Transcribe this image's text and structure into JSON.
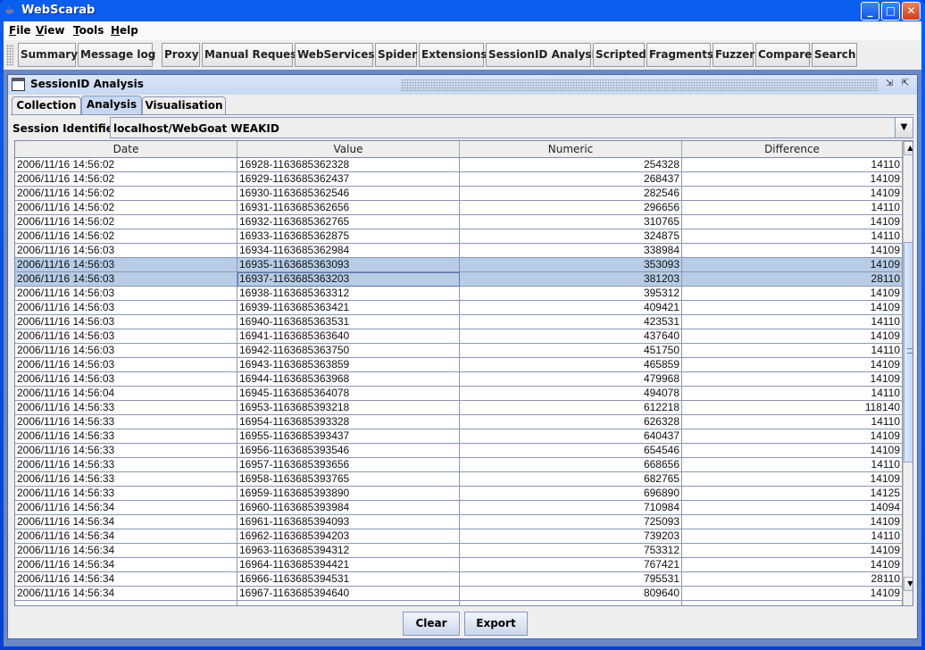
{
  "window": {
    "title": "WebScarab",
    "app_icon": "java-cup-icon"
  },
  "menubar": [
    {
      "label": "File",
      "mnemonic": "F",
      "rest": "ile"
    },
    {
      "label": "View",
      "mnemonic": "V",
      "rest": "iew"
    },
    {
      "label": "Tools",
      "mnemonic": "T",
      "rest": "ools"
    },
    {
      "label": "Help",
      "mnemonic": "H",
      "rest": "elp"
    }
  ],
  "toolbar": [
    "Summary",
    "Message log",
    "Proxy",
    "Manual Request",
    "WebServices",
    "Spider",
    "Extensions",
    "SessionID Analysis",
    "Scripted",
    "Fragments",
    "Fuzzer",
    "Compare",
    "Search"
  ],
  "internal_frame": {
    "title": "SessionID Analysis"
  },
  "tabs": [
    {
      "label": "Collection",
      "active": false
    },
    {
      "label": "Analysis",
      "active": true
    },
    {
      "label": "Visualisation",
      "active": false
    }
  ],
  "session": {
    "label": "Session Identifier :",
    "value": "localhost/WebGoat WEAKID"
  },
  "table": {
    "columns": [
      "Date",
      "Value",
      "Numeric",
      "Difference"
    ],
    "selected_rows": [
      7,
      8
    ],
    "rows": [
      [
        "2006/11/16 14:56:02",
        "16928-1163685362328",
        "254328",
        "14110"
      ],
      [
        "2006/11/16 14:56:02",
        "16929-1163685362437",
        "268437",
        "14109"
      ],
      [
        "2006/11/16 14:56:02",
        "16930-1163685362546",
        "282546",
        "14109"
      ],
      [
        "2006/11/16 14:56:02",
        "16931-1163685362656",
        "296656",
        "14110"
      ],
      [
        "2006/11/16 14:56:02",
        "16932-1163685362765",
        "310765",
        "14109"
      ],
      [
        "2006/11/16 14:56:02",
        "16933-1163685362875",
        "324875",
        "14110"
      ],
      [
        "2006/11/16 14:56:03",
        "16934-1163685362984",
        "338984",
        "14109"
      ],
      [
        "2006/11/16 14:56:03",
        "16935-1163685363093",
        "353093",
        "14109"
      ],
      [
        "2006/11/16 14:56:03",
        "16937-1163685363203",
        "381203",
        "28110"
      ],
      [
        "2006/11/16 14:56:03",
        "16938-1163685363312",
        "395312",
        "14109"
      ],
      [
        "2006/11/16 14:56:03",
        "16939-1163685363421",
        "409421",
        "14109"
      ],
      [
        "2006/11/16 14:56:03",
        "16940-1163685363531",
        "423531",
        "14110"
      ],
      [
        "2006/11/16 14:56:03",
        "16941-1163685363640",
        "437640",
        "14109"
      ],
      [
        "2006/11/16 14:56:03",
        "16942-1163685363750",
        "451750",
        "14110"
      ],
      [
        "2006/11/16 14:56:03",
        "16943-1163685363859",
        "465859",
        "14109"
      ],
      [
        "2006/11/16 14:56:03",
        "16944-1163685363968",
        "479968",
        "14109"
      ],
      [
        "2006/11/16 14:56:04",
        "16945-1163685364078",
        "494078",
        "14110"
      ],
      [
        "2006/11/16 14:56:33",
        "16953-1163685393218",
        "612218",
        "118140"
      ],
      [
        "2006/11/16 14:56:33",
        "16954-1163685393328",
        "626328",
        "14110"
      ],
      [
        "2006/11/16 14:56:33",
        "16955-1163685393437",
        "640437",
        "14109"
      ],
      [
        "2006/11/16 14:56:33",
        "16956-1163685393546",
        "654546",
        "14109"
      ],
      [
        "2006/11/16 14:56:33",
        "16957-1163685393656",
        "668656",
        "14110"
      ],
      [
        "2006/11/16 14:56:33",
        "16958-1163685393765",
        "682765",
        "14109"
      ],
      [
        "2006/11/16 14:56:33",
        "16959-1163685393890",
        "696890",
        "14125"
      ],
      [
        "2006/11/16 14:56:34",
        "16960-1163685393984",
        "710984",
        "14094"
      ],
      [
        "2006/11/16 14:56:34",
        "16961-1163685394093",
        "725093",
        "14109"
      ],
      [
        "2006/11/16 14:56:34",
        "16962-1163685394203",
        "739203",
        "14110"
      ],
      [
        "2006/11/16 14:56:34",
        "16963-1163685394312",
        "753312",
        "14109"
      ],
      [
        "2006/11/16 14:56:34",
        "16964-1163685394421",
        "767421",
        "14109"
      ],
      [
        "2006/11/16 14:56:34",
        "16966-1163685394531",
        "795531",
        "28110"
      ],
      [
        "2006/11/16 14:56:34",
        "16967-1163685394640",
        "809640",
        "14109"
      ]
    ]
  },
  "buttons": {
    "clear": "Clear",
    "export": "Export"
  },
  "colors": {
    "selection": "#b8cce6",
    "titlebar": "#0a5ef0",
    "desktop": "#6b88c3"
  }
}
